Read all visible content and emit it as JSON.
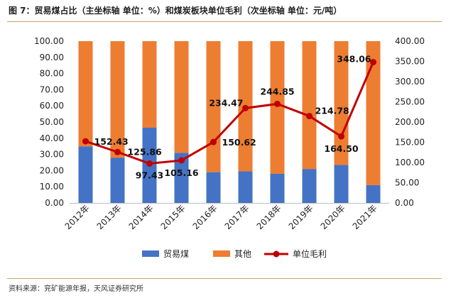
{
  "title": "图 7：贸易煤占比（主坐标轴 单位：%）和煤炭板块单位毛利（次坐标轴 单位：元/吨）",
  "source": "资料来源：兖矿能源年报，天风证券研究所",
  "colors": {
    "trade": "#4472C4",
    "other": "#ED7D31",
    "line": "#C00000"
  },
  "chart_data": {
    "type": "bar",
    "stacked": true,
    "title": "图 7：贸易煤占比（主坐标轴 单位：%）和煤炭板块单位毛利（次坐标轴 单位：元/吨）",
    "categories": [
      "2012年",
      "2013年",
      "2014年",
      "2015年",
      "2016年",
      "2017年",
      "2018年",
      "2019年",
      "2020年",
      "2021年"
    ],
    "series": [
      {
        "name": "贸易煤",
        "type": "bar",
        "axis": "left",
        "values": [
          35,
          28,
          46.5,
          31,
          19,
          19.5,
          18,
          21,
          23.5,
          11
        ]
      },
      {
        "name": "其他",
        "type": "bar",
        "axis": "left",
        "values": [
          65,
          72,
          53.5,
          69,
          81,
          80.5,
          82,
          79,
          76.5,
          89
        ]
      },
      {
        "name": "单位毛利",
        "type": "line",
        "axis": "right",
        "values": [
          152.43,
          125.86,
          97.43,
          105.16,
          150.62,
          234.47,
          244.85,
          214.78,
          164.5,
          348.06
        ],
        "labels": [
          "152.43",
          "125.86",
          "97.43",
          "105.16",
          "150.62",
          "234.47",
          "244.85",
          "214.78",
          "164.50",
          "348.06"
        ]
      }
    ],
    "y_left": {
      "min": 0,
      "max": 100,
      "ticks": [
        "0.00",
        "10.00",
        "20.00",
        "30.00",
        "40.00",
        "50.00",
        "60.00",
        "70.00",
        "80.00",
        "90.00",
        "100.00"
      ]
    },
    "y_right": {
      "min": 0,
      "max": 400,
      "ticks": [
        "0.00",
        "50.00",
        "100.00",
        "150.00",
        "200.00",
        "250.00",
        "300.00",
        "350.00",
        "400.00"
      ]
    },
    "grid": false,
    "legend_position": "bottom"
  }
}
